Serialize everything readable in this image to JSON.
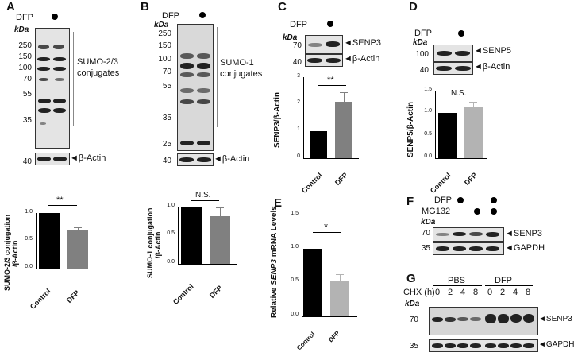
{
  "panels": {
    "A": {
      "letter": "A",
      "dfp": "DFP",
      "kda": "kDa",
      "markers": [
        "250",
        "150",
        "100",
        "70",
        "55",
        "35",
        "40"
      ],
      "label_line1": "SUMO-2/3",
      "label_line2": "conjugates",
      "actin": "β-Actin",
      "ylabel": "SUMO-2/3 conjugation",
      "ylabel2": "/β-Actin",
      "yticks": [
        "0.0",
        "0.5",
        "1.0"
      ],
      "xticks": [
        "Control",
        "DFP"
      ],
      "significance": "**"
    },
    "B": {
      "letter": "B",
      "dfp": "DFP",
      "kda": "kDa",
      "markers": [
        "250",
        "150",
        "100",
        "70",
        "55",
        "35",
        "25",
        "40"
      ],
      "label_line1": "SUMO-1",
      "label_line2": "conjugates",
      "actin": "β-Actin",
      "ylabel": "SUMO-1 conjugation",
      "ylabel2": "/β-Actin",
      "yticks": [
        "0.0",
        "0.5",
        "1.0"
      ],
      "xticks": [
        "Control",
        "DFP"
      ],
      "significance": "N.S."
    },
    "C": {
      "letter": "C",
      "dfp": "DFP",
      "kda": "kDa",
      "markers": [
        "70",
        "40"
      ],
      "target": "SENP3",
      "actin": "β-Actin",
      "ylabel": "SENP3/β-Actin",
      "yticks": [
        "0",
        "1",
        "2",
        "3"
      ],
      "xticks": [
        "Control",
        "DFP"
      ],
      "significance": "**"
    },
    "D": {
      "letter": "D",
      "dfp": "DFP",
      "kda": "kDa",
      "markers": [
        "100",
        "40"
      ],
      "target": "SENP5",
      "actin": "β-Actin",
      "ylabel": "SENP5/β-Actin",
      "yticks": [
        "0.0",
        "0.5",
        "1.0",
        "1.5"
      ],
      "xticks": [
        "Control",
        "DFP"
      ],
      "significance": "N.S."
    },
    "E": {
      "letter": "E",
      "ylabel_pre": "Relative ",
      "ylabel_gene": "SENP3",
      "ylabel_post": " mRNA Levels",
      "yticks": [
        "0.0",
        "0.5",
        "1.0",
        "1.5"
      ],
      "xticks": [
        "Control",
        "DFP"
      ],
      "significance": "*"
    },
    "F": {
      "letter": "F",
      "dfp": "DFP",
      "mg132": "MG132",
      "kda": "kDa",
      "markers": [
        "70",
        "35"
      ],
      "target": "SENP3",
      "loading": "GAPDH"
    },
    "G": {
      "letter": "G",
      "cond1": "PBS",
      "cond2": "DFP",
      "chx": "CHX (h)",
      "times": [
        "0",
        "2",
        "4",
        "8",
        "0",
        "2",
        "4",
        "8"
      ],
      "kda": "kDa",
      "markers": [
        "70",
        "35"
      ],
      "target": "SENP3",
      "loading": "GAPDH"
    }
  },
  "chart_data": [
    {
      "type": "bar",
      "categories": [
        "Control",
        "DFP"
      ],
      "values": [
        1.0,
        0.68
      ],
      "errors": [
        0,
        0.06
      ],
      "ylabel": "SUMO-2/3 conjugation /β-Actin",
      "ylim": [
        0,
        1.0
      ],
      "colors": [
        "#000000",
        "#808080"
      ]
    },
    {
      "type": "bar",
      "categories": [
        "Control",
        "DFP"
      ],
      "values": [
        1.0,
        0.83
      ],
      "errors": [
        0,
        0.15
      ],
      "ylabel": "SUMO-1 conjugation /β-Actin",
      "ylim": [
        0,
        1.0
      ],
      "colors": [
        "#000000",
        "#808080"
      ]
    },
    {
      "type": "bar",
      "categories": [
        "Control",
        "DFP"
      ],
      "values": [
        1.0,
        2.1
      ],
      "errors": [
        0,
        0.35
      ],
      "ylabel": "SENP3/β-Actin",
      "ylim": [
        0,
        3
      ],
      "colors": [
        "#000000",
        "#808080"
      ]
    },
    {
      "type": "bar",
      "categories": [
        "Control",
        "DFP"
      ],
      "values": [
        1.0,
        1.13
      ],
      "errors": [
        0,
        0.12
      ],
      "ylabel": "SENP5/β-Actin",
      "ylim": [
        0,
        1.5
      ],
      "colors": [
        "#000000",
        "#b3b3b3"
      ]
    },
    {
      "type": "bar",
      "categories": [
        "Control",
        "DFP"
      ],
      "values": [
        1.0,
        0.53
      ],
      "errors": [
        0,
        0.09
      ],
      "ylabel": "Relative SENP3 mRNA Levels",
      "ylim": [
        0,
        1.5
      ],
      "colors": [
        "#000000",
        "#b3b3b3"
      ]
    }
  ]
}
